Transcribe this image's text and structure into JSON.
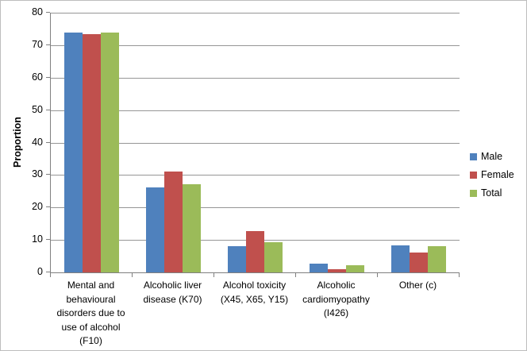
{
  "chart_data": {
    "type": "bar",
    "title": "",
    "xlabel": "",
    "ylabel": "Proportion",
    "ylim": [
      0,
      80
    ],
    "ytick_step": 10,
    "grid": true,
    "legend_position": "right",
    "categories": [
      "Mental and\nbehavioural\ndisorders due to\nuse of alcohol\n(F10)",
      "Alcoholic liver\ndisease (K70)",
      "Alcohol toxicity\n(X45, X65, Y15)",
      "Alcoholic\ncardiomyopathy\n(I426)",
      "Other (c)"
    ],
    "series": [
      {
        "name": "Male",
        "color": "#4F81BD",
        "values": [
          74.0,
          26.3,
          8.0,
          2.7,
          8.3
        ]
      },
      {
        "name": "Female",
        "color": "#C0504D",
        "values": [
          73.4,
          31.0,
          12.8,
          0.9,
          6.2
        ]
      },
      {
        "name": "Total",
        "color": "#9BBB59",
        "values": [
          73.8,
          27.2,
          9.4,
          2.2,
          8.0
        ]
      }
    ]
  },
  "colors": {
    "axis": "#808080",
    "gridline": "#969696",
    "chart_border": "#bdbdbd",
    "background": "#ffffff",
    "text": "#000000"
  }
}
